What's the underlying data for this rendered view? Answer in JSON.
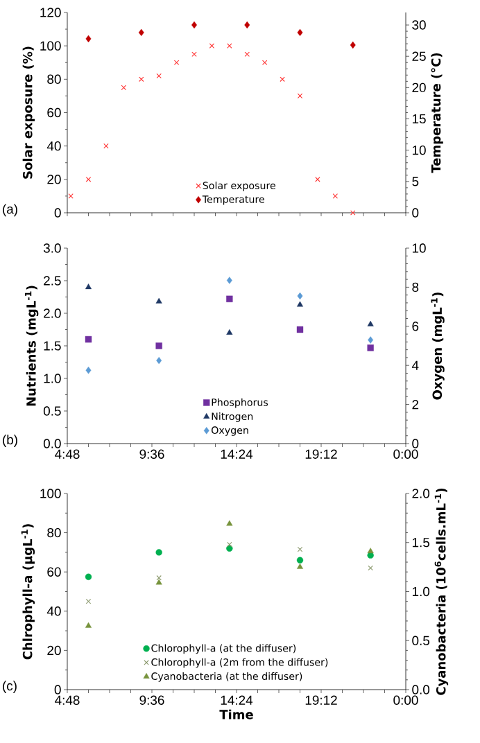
{
  "chart_data": [
    {
      "type": "scatter",
      "ylabel": "Solar exposure (%)",
      "y2label": "Temperature (°C)",
      "annotations": [
        "(a)"
      ],
      "xlim": [
        4.8,
        24
      ],
      "xticks": [
        {
          "value": 4.8,
          "label": null
        },
        {
          "value": 6,
          "label": null
        },
        {
          "value": 7.2,
          "label": null
        },
        {
          "value": 8.4,
          "label": null
        },
        {
          "value": 9.6,
          "label": null
        },
        {
          "value": 10.8,
          "label": null
        },
        {
          "value": 12,
          "label": null
        },
        {
          "value": 13.2,
          "label": null
        },
        {
          "value": 14.4,
          "label": null
        },
        {
          "value": 15.6,
          "label": null
        },
        {
          "value": 16.8,
          "label": null
        },
        {
          "value": 18,
          "label": null
        },
        {
          "value": 19.2,
          "label": null
        },
        {
          "value": 20.4,
          "label": null
        },
        {
          "value": 21.6,
          "label": null
        },
        {
          "value": 22.8,
          "label": null
        },
        {
          "value": 24,
          "label": null
        }
      ],
      "ylim": [
        0,
        120
      ],
      "yticks": [
        0,
        20,
        40,
        60,
        80,
        100,
        120
      ],
      "y2lim": [
        0,
        32
      ],
      "y2ticks": [
        0,
        5,
        10,
        15,
        20,
        25,
        30
      ],
      "tick_labels": "y",
      "legend": "bottom",
      "grid": false,
      "series": [
        {
          "name": "Solar exposure",
          "color": "#ff3333",
          "marker": "cross",
          "x": [
            5,
            6,
            7,
            8,
            9,
            10,
            11,
            12,
            13,
            14,
            15,
            16,
            17,
            18,
            19,
            20,
            21
          ],
          "values": [
            10,
            20,
            40,
            75,
            80,
            82,
            90,
            95,
            100,
            100,
            95,
            90,
            80,
            70,
            20,
            10,
            0
          ]
        },
        {
          "name": "Temperature",
          "color": "#c00000",
          "marker": "diamond",
          "axis": "y2",
          "x": [
            6,
            9,
            12,
            15,
            18,
            21
          ],
          "values": [
            27.8,
            28.8,
            30,
            30,
            28.8,
            26.8
          ]
        }
      ]
    },
    {
      "type": "scatter",
      "ylabel": "Nutrients (mgL$^{-1}$)",
      "y2label": "Oxygen (mgL$^{-1}$)",
      "annotations": [
        "(b)"
      ],
      "xlim": [
        4.8,
        24
      ],
      "xticks": [
        {
          "value": 4.8,
          "label": "4:48"
        },
        {
          "value": 6,
          "label": null
        },
        {
          "value": 7.2,
          "label": null
        },
        {
          "value": 8.4,
          "label": null
        },
        {
          "value": 9.6,
          "label": "9:36"
        },
        {
          "value": 10.8,
          "label": null
        },
        {
          "value": 12,
          "label": null
        },
        {
          "value": 13.2,
          "label": null
        },
        {
          "value": 14.4,
          "label": "14:24"
        },
        {
          "value": 15.6,
          "label": null
        },
        {
          "value": 16.8,
          "label": null
        },
        {
          "value": 18,
          "label": null
        },
        {
          "value": 19.2,
          "label": "19:12"
        },
        {
          "value": 20.4,
          "label": null
        },
        {
          "value": 21.6,
          "label": null
        },
        {
          "value": 22.8,
          "label": null
        },
        {
          "value": 24,
          "label": "0:00"
        }
      ],
      "ylim": [
        0,
        3
      ],
      "yticks": [
        {
          "value": 0,
          "label": "0.0"
        },
        {
          "value": 0.5,
          "label": "0.5"
        },
        {
          "value": 1,
          "label": "1.0"
        },
        {
          "value": 1.5,
          "label": "1.5"
        },
        {
          "value": 2,
          "label": "2.0"
        },
        {
          "value": 2.5,
          "label": "2.5"
        },
        {
          "value": 3,
          "label": "3.0"
        }
      ],
      "y2lim": [
        0,
        10
      ],
      "y2ticks": [
        0,
        2,
        4,
        6,
        8,
        10
      ],
      "legend": "bottom",
      "grid": false,
      "series": [
        {
          "name": "Phosphorus",
          "color": "#7030a0",
          "marker": "square",
          "x": [
            6,
            10,
            14,
            18,
            22
          ],
          "values": [
            1.6,
            1.5,
            2.22,
            1.75,
            1.47
          ]
        },
        {
          "name": "Nitrogen",
          "color": "#1f3864",
          "marker": "triangle",
          "x": [
            6,
            10,
            14,
            18,
            22
          ],
          "values": [
            2.4,
            2.18,
            1.7,
            2.13,
            1.83
          ]
        },
        {
          "name": "Oxygen",
          "color": "#5b9bd5",
          "marker": "diamond",
          "axis": "y2",
          "x": [
            6,
            10,
            14,
            18,
            22
          ],
          "values": [
            3.75,
            4.25,
            8.35,
            7.55,
            5.3
          ]
        }
      ]
    },
    {
      "type": "scatter",
      "xlabel": "Time",
      "ylabel": "Chlrophyll-a (µgL$^{-1}$)",
      "y2label": "Cyanobacteria (10$^{6}$cells.mL$^{-1}$)",
      "annotations": [
        "(c)"
      ],
      "xlim": [
        4.8,
        24
      ],
      "xticks": [
        {
          "value": 4.8,
          "label": "4:48"
        },
        {
          "value": 6,
          "label": null
        },
        {
          "value": 7.2,
          "label": null
        },
        {
          "value": 8.4,
          "label": null
        },
        {
          "value": 9.6,
          "label": "9:36"
        },
        {
          "value": 10.8,
          "label": null
        },
        {
          "value": 12,
          "label": null
        },
        {
          "value": 13.2,
          "label": null
        },
        {
          "value": 14.4,
          "label": "14:24"
        },
        {
          "value": 15.6,
          "label": null
        },
        {
          "value": 16.8,
          "label": null
        },
        {
          "value": 18,
          "label": null
        },
        {
          "value": 19.2,
          "label": "19:12"
        },
        {
          "value": 20.4,
          "label": null
        },
        {
          "value": 21.6,
          "label": null
        },
        {
          "value": 22.8,
          "label": null
        },
        {
          "value": 24,
          "label": "0:00"
        }
      ],
      "ylim": [
        0,
        100
      ],
      "yticks": [
        0,
        20,
        40,
        60,
        80,
        100
      ],
      "y2lim": [
        0,
        2
      ],
      "y2ticks": [
        {
          "value": 0,
          "label": "0.0"
        },
        {
          "value": 0.5,
          "label": "0.5"
        },
        {
          "value": 1,
          "label": "1.0"
        },
        {
          "value": 1.5,
          "label": "1.5"
        },
        {
          "value": 2,
          "label": "2.0"
        }
      ],
      "legend": "bottom",
      "grid": false,
      "series": [
        {
          "name": "Chlorophyll-a  (at the diffuser)",
          "color": "#00b050",
          "marker": "circle",
          "x": [
            6,
            10,
            14,
            18,
            22
          ],
          "values": [
            57.5,
            70,
            72,
            66,
            68.5
          ]
        },
        {
          "name": "Chlorophyll-a  (2m from the diffuser)",
          "color": "#8c9a6e",
          "marker": "cross",
          "x": [
            6,
            10,
            14,
            18,
            22
          ],
          "values": [
            45,
            57,
            74,
            71.5,
            62
          ]
        },
        {
          "name": "Cyanobacteria  (at the diffuser)",
          "color": "#77933c",
          "marker": "triangle",
          "axis": "y2",
          "x": [
            6,
            10,
            14,
            18,
            22
          ],
          "values": [
            0.65,
            1.09,
            1.69,
            1.25,
            1.41
          ]
        }
      ]
    }
  ]
}
